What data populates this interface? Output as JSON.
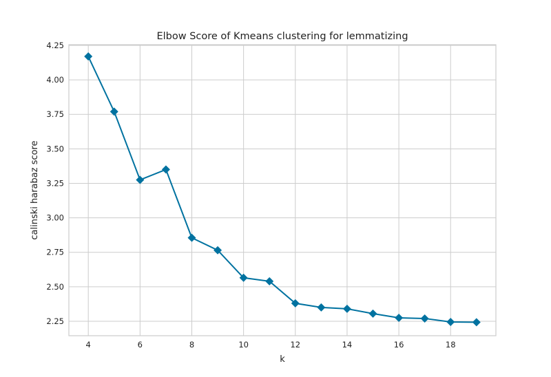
{
  "chart_data": {
    "type": "line",
    "title": "Elbow Score of Kmeans clustering for lemmatizing",
    "xlabel": "k",
    "ylabel": "calinski harabaz score",
    "xlim": [
      3.25,
      19.75
    ],
    "ylim": [
      2.145,
      4.255
    ],
    "xticks": [
      4,
      6,
      8,
      10,
      12,
      14,
      16,
      18
    ],
    "yticks": [
      2.25,
      2.5,
      2.75,
      3.0,
      3.25,
      3.5,
      3.75,
      4.0,
      4.25
    ],
    "ytick_labels": [
      "2.25",
      "2.50",
      "2.75",
      "3.00",
      "3.25",
      "3.50",
      "3.75",
      "4.00",
      "4.25"
    ],
    "grid": true,
    "marker": "diamond",
    "series": [
      {
        "color": "#0072a0",
        "x": [
          4,
          5,
          6,
          7,
          8,
          9,
          10,
          11,
          12,
          13,
          14,
          15,
          16,
          17,
          18,
          19
        ],
        "y": [
          4.17,
          3.77,
          3.275,
          3.35,
          2.855,
          2.765,
          2.565,
          2.54,
          2.38,
          2.35,
          2.34,
          2.305,
          2.275,
          2.27,
          2.245,
          2.243
        ]
      }
    ]
  }
}
